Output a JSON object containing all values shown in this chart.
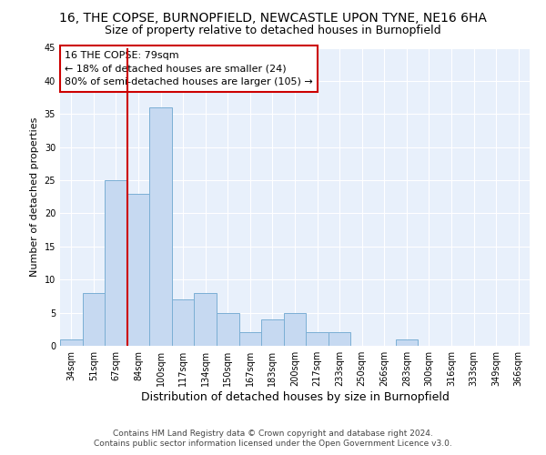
{
  "title": "16, THE COPSE, BURNOPFIELD, NEWCASTLE UPON TYNE, NE16 6HA",
  "subtitle": "Size of property relative to detached houses in Burnopfield",
  "xlabel": "Distribution of detached houses by size in Burnopfield",
  "ylabel": "Number of detached properties",
  "categories": [
    "34sqm",
    "51sqm",
    "67sqm",
    "84sqm",
    "100sqm",
    "117sqm",
    "134sqm",
    "150sqm",
    "167sqm",
    "183sqm",
    "200sqm",
    "217sqm",
    "233sqm",
    "250sqm",
    "266sqm",
    "283sqm",
    "300sqm",
    "316sqm",
    "333sqm",
    "349sqm",
    "366sqm"
  ],
  "values": [
    1,
    8,
    25,
    23,
    36,
    7,
    8,
    5,
    2,
    4,
    5,
    2,
    2,
    0,
    0,
    1,
    0,
    0,
    0,
    0,
    0
  ],
  "bar_color": "#c6d9f1",
  "bar_edge_color": "#7bafd4",
  "vline_x_index": 2.5,
  "vline_color": "#cc0000",
  "annotation_text": "16 THE COPSE: 79sqm\n← 18% of detached houses are smaller (24)\n80% of semi-detached houses are larger (105) →",
  "annotation_box_color": "#ffffff",
  "annotation_box_edge": "#cc0000",
  "ylim": [
    0,
    45
  ],
  "yticks": [
    0,
    5,
    10,
    15,
    20,
    25,
    30,
    35,
    40,
    45
  ],
  "footer1": "Contains HM Land Registry data © Crown copyright and database right 2024.",
  "footer2": "Contains public sector information licensed under the Open Government Licence v3.0.",
  "plot_bg_color": "#e8f0fb",
  "fig_bg_color": "#ffffff",
  "title_fontsize": 10,
  "subtitle_fontsize": 9,
  "xlabel_fontsize": 9,
  "ylabel_fontsize": 8,
  "tick_fontsize": 7,
  "annotation_fontsize": 8,
  "footer_fontsize": 6.5,
  "grid_color": "#ffffff",
  "grid_linewidth": 0.8
}
